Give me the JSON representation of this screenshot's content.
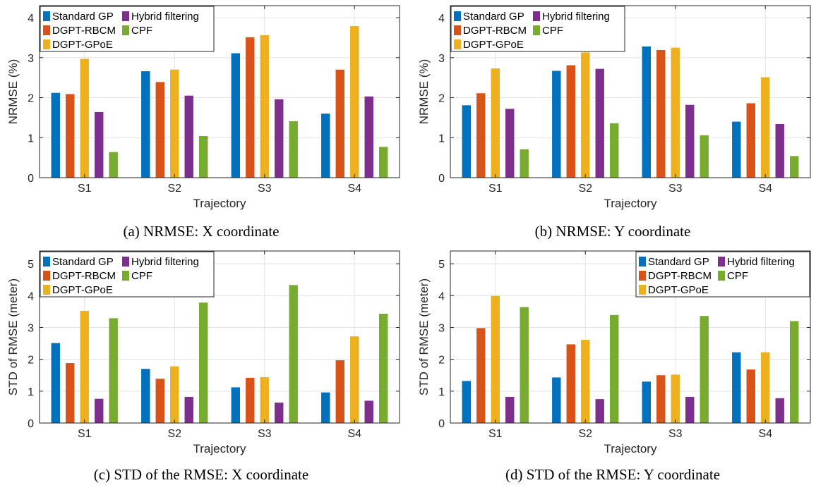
{
  "figure": {
    "captions": [
      "(a) NRMSE: X coordinate",
      "(b) NRMSE: Y coordinate",
      "(c) STD of the RMSE: X coordinate",
      "(d) STD of the RMSE: Y coordinate"
    ]
  },
  "colors": {
    "Standard GP": "#0072BD",
    "DGPT-RBCM": "#D95319",
    "DGPT-GPoE": "#EDB120",
    "Hybrid filtering": "#7E2F8E",
    "CPF": "#77AC30"
  },
  "chart_data": [
    {
      "type": "bar",
      "title": "",
      "xlabel": "Trajectory",
      "ylabel": "NRMSE (%)",
      "ylim": [
        0,
        4.3
      ],
      "yticks": [
        0,
        1,
        2,
        3,
        4
      ],
      "grid": true,
      "legend_position": "top-left",
      "categories": [
        "S1",
        "S2",
        "S3",
        "S4"
      ],
      "series": [
        {
          "name": "Standard GP",
          "values": [
            2.12,
            2.66,
            3.11,
            1.6
          ]
        },
        {
          "name": "DGPT-RBCM",
          "values": [
            2.09,
            2.39,
            3.51,
            2.7
          ]
        },
        {
          "name": "DGPT-GPoE",
          "values": [
            2.97,
            2.7,
            3.56,
            3.79
          ]
        },
        {
          "name": "Hybrid filtering",
          "values": [
            1.64,
            2.05,
            1.96,
            2.03
          ]
        },
        {
          "name": "CPF",
          "values": [
            0.64,
            1.04,
            1.41,
            0.77
          ]
        }
      ]
    },
    {
      "type": "bar",
      "title": "",
      "xlabel": "Trajectory",
      "ylabel": "NRMSE (%)",
      "ylim": [
        0,
        4.3
      ],
      "yticks": [
        0,
        1,
        2,
        3,
        4
      ],
      "grid": true,
      "legend_position": "top-left",
      "categories": [
        "S1",
        "S2",
        "S3",
        "S4"
      ],
      "series": [
        {
          "name": "Standard GP",
          "values": [
            1.81,
            2.67,
            3.28,
            1.4
          ]
        },
        {
          "name": "DGPT-RBCM",
          "values": [
            2.11,
            2.81,
            3.19,
            1.86
          ]
        },
        {
          "name": "DGPT-GPoE",
          "values": [
            2.73,
            3.13,
            3.25,
            2.51
          ]
        },
        {
          "name": "Hybrid filtering",
          "values": [
            1.72,
            2.72,
            1.82,
            1.34
          ]
        },
        {
          "name": "CPF",
          "values": [
            0.71,
            1.36,
            1.06,
            0.54
          ]
        }
      ]
    },
    {
      "type": "bar",
      "title": "",
      "xlabel": "Trajectory",
      "ylabel": "STD of RMSE (meter)",
      "ylim": [
        0,
        5.4
      ],
      "yticks": [
        0,
        1,
        2,
        3,
        4,
        5
      ],
      "grid": true,
      "legend_position": "top-left",
      "categories": [
        "S1",
        "S2",
        "S3",
        "S4"
      ],
      "series": [
        {
          "name": "Standard GP",
          "values": [
            2.51,
            1.7,
            1.12,
            0.96
          ]
        },
        {
          "name": "DGPT-RBCM",
          "values": [
            1.88,
            1.39,
            1.42,
            1.97
          ]
        },
        {
          "name": "DGPT-GPoE",
          "values": [
            3.52,
            1.78,
            1.44,
            2.72
          ]
        },
        {
          "name": "Hybrid filtering",
          "values": [
            0.76,
            0.82,
            0.64,
            0.7
          ]
        },
        {
          "name": "CPF",
          "values": [
            3.29,
            3.78,
            4.33,
            3.43
          ]
        }
      ]
    },
    {
      "type": "bar",
      "title": "",
      "xlabel": "Trajectory",
      "ylabel": "STD of RMSE (meter)",
      "ylim": [
        0,
        5.4
      ],
      "yticks": [
        0,
        1,
        2,
        3,
        4,
        5
      ],
      "grid": true,
      "legend_position": "top-right",
      "categories": [
        "S1",
        "S2",
        "S3",
        "S4"
      ],
      "series": [
        {
          "name": "Standard GP",
          "values": [
            1.32,
            1.43,
            1.3,
            2.22
          ]
        },
        {
          "name": "DGPT-RBCM",
          "values": [
            2.98,
            2.47,
            1.5,
            1.68
          ]
        },
        {
          "name": "DGPT-GPoE",
          "values": [
            3.99,
            2.61,
            1.52,
            2.22
          ]
        },
        {
          "name": "Hybrid filtering",
          "values": [
            0.82,
            0.75,
            0.82,
            0.78
          ]
        },
        {
          "name": "CPF",
          "values": [
            3.64,
            3.39,
            3.36,
            3.2
          ]
        }
      ]
    }
  ]
}
